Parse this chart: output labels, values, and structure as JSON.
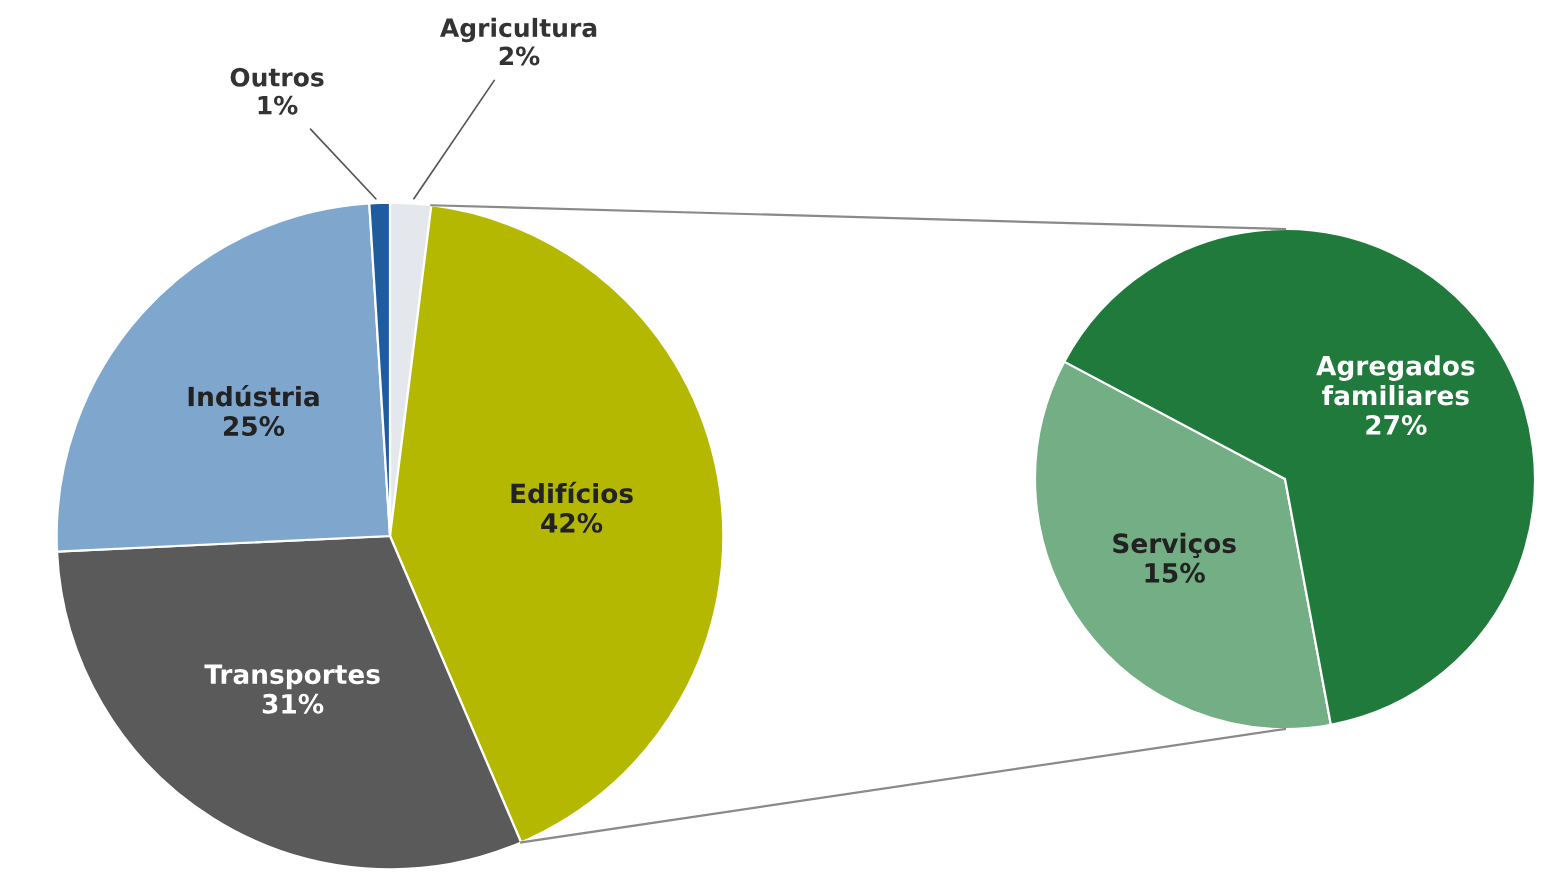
{
  "chart_data": [
    {
      "type": "pie",
      "categories": [
        "Agricultura",
        "Edifícios",
        "Transportes",
        "Indústria",
        "Outros"
      ],
      "values": [
        2,
        42,
        31,
        25,
        1
      ],
      "value_labels": [
        "2%",
        "42%",
        "31%",
        "25%",
        "1%"
      ],
      "colors": [
        "#e4e8ec",
        "#b5b800",
        "#5a5a5a",
        "#7fa6cc",
        "#1f5c9e"
      ]
    },
    {
      "type": "pie",
      "categories": [
        "Serviços",
        "Agregados familiares"
      ],
      "values": [
        15,
        27
      ],
      "value_labels": [
        "15%",
        "27%"
      ],
      "colors": [
        "#74ae84",
        "#1f7a3c"
      ]
    }
  ]
}
